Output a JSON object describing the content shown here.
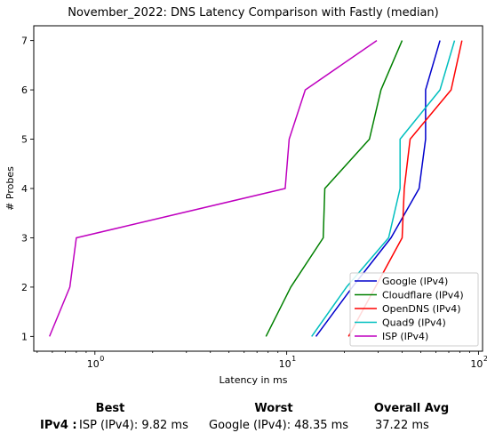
{
  "chart_data": {
    "type": "line",
    "title": "November_2022: DNS Latency Comparison with Fastly (median)",
    "xlabel": "Latency in ms",
    "ylabel": "# Probes",
    "xscale": "log",
    "xlim": [
      0.48,
      105
    ],
    "ylim": [
      0.7,
      7.3
    ],
    "xticks": [
      1,
      10,
      100
    ],
    "xtick_labels": [
      "10",
      "10",
      "10"
    ],
    "xtick_exponents": [
      "0",
      "1",
      "2"
    ],
    "yticks": [
      1,
      2,
      3,
      4,
      5,
      6,
      7
    ],
    "ytick_labels": [
      "1",
      "2",
      "3",
      "4",
      "5",
      "6",
      "7"
    ],
    "legend_position": "bottom-right",
    "series": [
      {
        "name": "Google (IPv4)",
        "color": "#0000cc",
        "x": [
          14.2,
          22,
          35,
          49,
          53,
          53,
          63
        ],
        "y": [
          1,
          2,
          3,
          4,
          5,
          6,
          7
        ]
      },
      {
        "name": "Cloudflare (IPv4)",
        "color": "#008000",
        "x": [
          7.8,
          10.5,
          15.5,
          15.8,
          27,
          31,
          40
        ],
        "y": [
          1,
          2,
          3,
          4,
          5,
          6,
          7
        ]
      },
      {
        "name": "OpenDNS (IPv4)",
        "color": "#ff0000",
        "x": [
          21,
          29,
          40,
          41,
          44,
          72,
          82
        ],
        "y": [
          1,
          2,
          3,
          4,
          5,
          6,
          7
        ]
      },
      {
        "name": "Quad9 (IPv4)",
        "color": "#00bfbf",
        "x": [
          13.5,
          20.5,
          34,
          39,
          39,
          63,
          75
        ],
        "y": [
          1,
          2,
          3,
          4,
          5,
          6,
          7
        ]
      },
      {
        "name": "ISP (IPv4)",
        "color": "#bf00bf",
        "x": [
          0.58,
          0.74,
          0.8,
          9.82,
          10.3,
          12.5,
          29.5
        ],
        "y": [
          1,
          2,
          3,
          4,
          5,
          6,
          7
        ]
      }
    ]
  },
  "summary": {
    "best_header": "Best",
    "worst_header": "Worst",
    "avg_header": "Overall Avg",
    "row_label": "IPv4 :",
    "best": "ISP (IPv4): 9.82 ms",
    "worst": "Google (IPv4): 48.35 ms",
    "avg": "37.22 ms"
  }
}
